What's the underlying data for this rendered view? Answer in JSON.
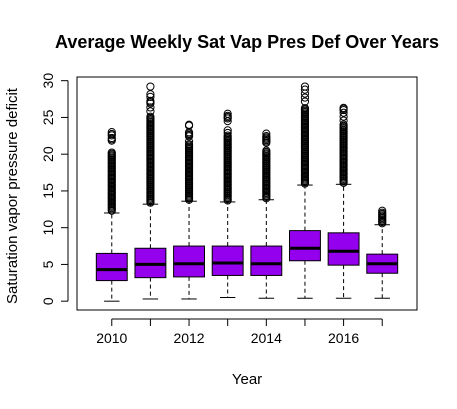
{
  "chart_data": {
    "type": "boxplot",
    "title": "Average Weekly Sat Vap Pres Def Over Years",
    "xlabel": "Year",
    "ylabel": "Saturation vapor pressure deficit",
    "ylim": [
      -1.2,
      30.5
    ],
    "yticks": [
      0,
      5,
      10,
      15,
      20,
      25,
      30
    ],
    "categories": [
      "2010",
      "2011",
      "2012",
      "2013",
      "2014",
      "2015",
      "2016",
      "2017"
    ],
    "xtick_labels": [
      "2010",
      "",
      "2012",
      "",
      "2014",
      "",
      "2016",
      ""
    ],
    "box_color": "#9400ee",
    "grid": false,
    "boxes": [
      {
        "category": "2010",
        "whisker_low": 0.0,
        "q1": 2.8,
        "median": 4.3,
        "q3": 6.5,
        "whisker_high": 12.0,
        "outlier_min": 12.3,
        "outlier_max": 23.0
      },
      {
        "category": "2011",
        "whisker_low": 0.3,
        "q1": 3.2,
        "median": 5.0,
        "q3": 7.2,
        "whisker_high": 13.2,
        "outlier_min": 13.4,
        "outlier_max": 29.2
      },
      {
        "category": "2012",
        "whisker_low": 0.3,
        "q1": 3.3,
        "median": 5.1,
        "q3": 7.5,
        "whisker_high": 13.6,
        "outlier_min": 13.8,
        "outlier_max": 24.0
      },
      {
        "category": "2013",
        "whisker_low": 0.5,
        "q1": 3.5,
        "median": 5.2,
        "q3": 7.5,
        "whisker_high": 13.5,
        "outlier_min": 13.7,
        "outlier_max": 25.5
      },
      {
        "category": "2014",
        "whisker_low": 0.4,
        "q1": 3.5,
        "median": 5.1,
        "q3": 7.5,
        "whisker_high": 13.8,
        "outlier_min": 14.0,
        "outlier_max": 22.8
      },
      {
        "category": "2015",
        "whisker_low": 0.4,
        "q1": 5.5,
        "median": 7.2,
        "q3": 9.6,
        "whisker_high": 15.8,
        "outlier_min": 16.0,
        "outlier_max": 29.2
      },
      {
        "category": "2016",
        "whisker_low": 0.4,
        "q1": 4.9,
        "median": 6.8,
        "q3": 9.3,
        "whisker_high": 15.9,
        "outlier_min": 16.1,
        "outlier_max": 26.3
      },
      {
        "category": "2017",
        "whisker_low": 0.4,
        "q1": 3.8,
        "median": 5.1,
        "q3": 6.4,
        "whisker_high": 10.4,
        "outlier_min": 10.6,
        "outlier_max": 12.3
      }
    ]
  }
}
